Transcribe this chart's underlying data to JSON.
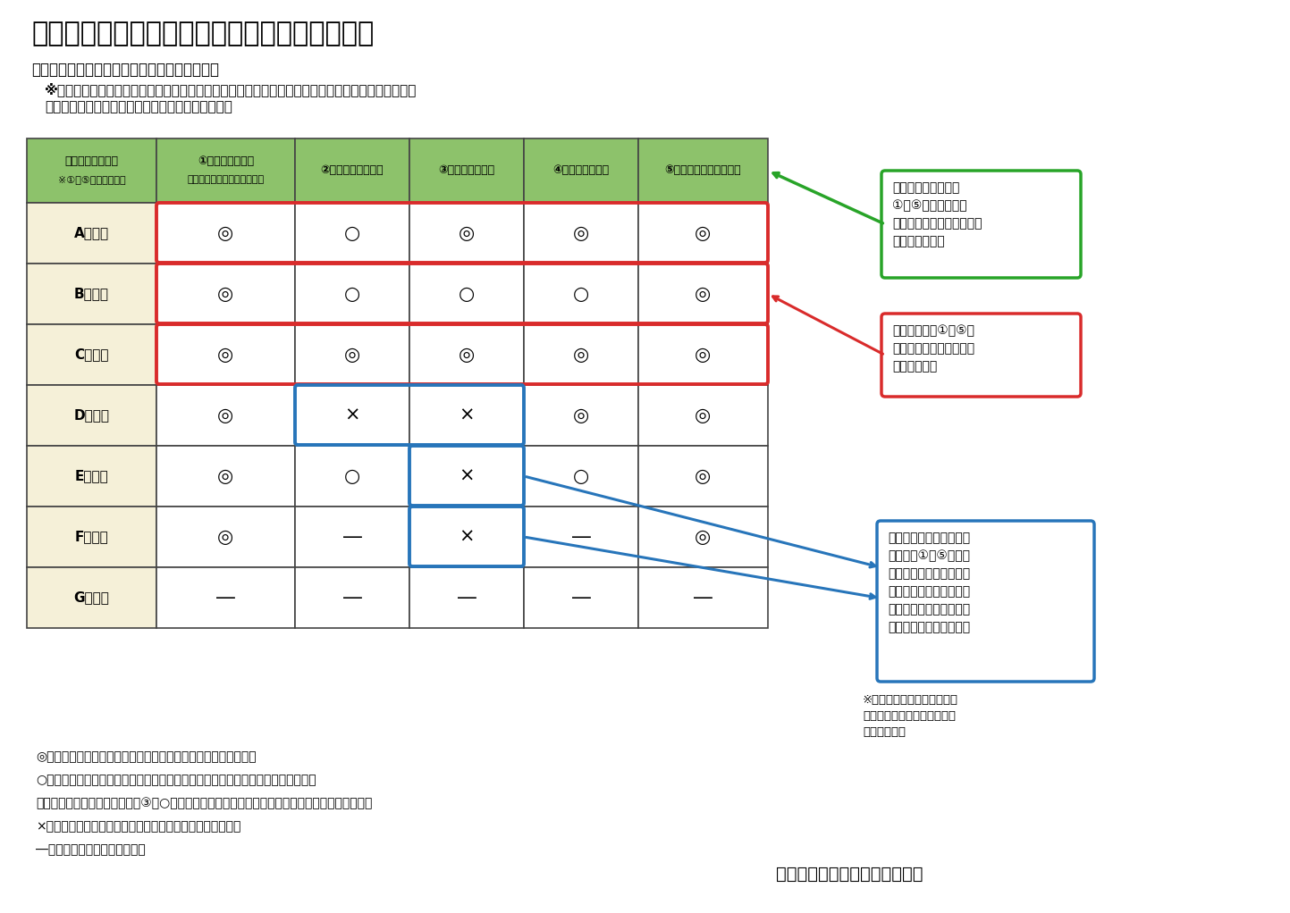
{
  "title": "図表４：かかりつけ医機能報告制度のイメージ",
  "subtitle1": "＜慢性疾患を有する高齢者の場合のイメージ＞",
  "subtitle2": "※報告を求める具体的な機能については、今後、有識者や専門家等の参画を得て、さらに詳細を検討",
  "subtitle3": "（診療所に加え、医療機関が病院の場合も検討）。",
  "col_headers": [
    "かかりつけ医機能\n※①～⑤は機能の例示",
    "①外来医療の提供\n（幅広いプライマリケア等）",
    "②休日・夜間の対応",
    "③入退院時の支援",
    "④在宅医療の提供",
    "⑤介護サービス等と連携"
  ],
  "rows": [
    {
      "label": "A診療所",
      "values": [
        "◎",
        "○",
        "◎",
        "◎",
        "◎"
      ]
    },
    {
      "label": "B診療所",
      "values": [
        "◎",
        "○",
        "○",
        "○",
        "◎"
      ]
    },
    {
      "label": "C診療所",
      "values": [
        "◎",
        "◎",
        "◎",
        "◎",
        "◎"
      ]
    },
    {
      "label": "D診療所",
      "values": [
        "◎",
        "×",
        "×",
        "◎",
        "◎"
      ]
    },
    {
      "label": "E診療所",
      "values": [
        "◎",
        "○",
        "×",
        "○",
        "◎"
      ]
    },
    {
      "label": "F診療所",
      "values": [
        "◎",
        "―",
        "×",
        "―",
        "◎"
      ]
    },
    {
      "label": "G診療所",
      "values": [
        "―",
        "―",
        "―",
        "―",
        "―"
      ]
    }
  ],
  "header_bg": "#8dc26b",
  "row_label_bg": "#f5f0d8",
  "table_border": "#555555",
  "red_rows": [
    0,
    1,
    2
  ],
  "green_box_text": "地域の医療機関は、\n①～⑤の機能の有無\nや、これらをあわせて担う\n意向等を報告。",
  "red_box_text": "都道府県は、①～⑤の\n機能をあわせて担う医療\n機関を確認。",
  "blue_box_text": "協議の場において、各医\n療機関の①～⑤を担う\n意向を踏まえつつ、地域\nで不足している機能を充\n足できるよう、支援や連\n携の具体的方法を検討。",
  "note_right_text": "※他院を支援する意向も報告\nし、不足する機能の充足の協\n議に活かす。",
  "legend_lines": [
    "◎：自院のかかりつけ患者に対し、当該機能を単独で提供できる",
    "○：自院のかかりつけ患者に対し、当該機能を他の医療機関と連携して提供できる",
    "　（連携する医療機関も報告。③の○は他院と連携して病床を確保している場合が考えられる。）",
    "×：当該機能を担う意向はあるが、現時点では提供できない",
    "―：当該機能を担う意向がない"
  ],
  "source": "出典：厚生労働省資料から抜粋"
}
